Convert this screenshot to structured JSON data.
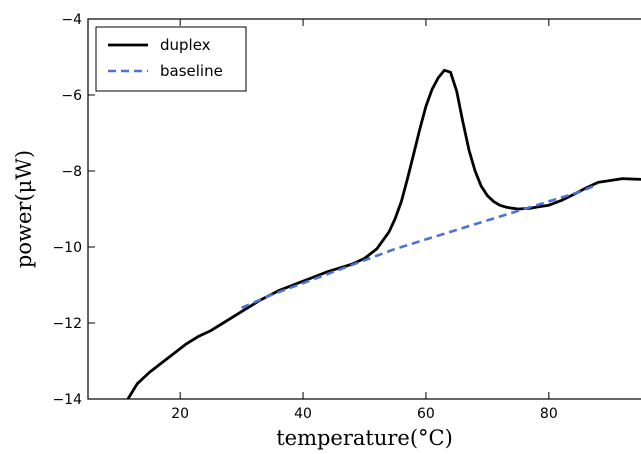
{
  "chart_data": {
    "type": "line",
    "title": "",
    "xlabel": "temperature(°C)",
    "ylabel": "power(μW)",
    "xlim": [
      5,
      95
    ],
    "ylim": [
      -14,
      -4
    ],
    "xticks": [
      20,
      40,
      60,
      80
    ],
    "yticks": [
      -14,
      -12,
      -10,
      -8,
      -6,
      -4
    ],
    "xtick_labels": [
      "20",
      "40",
      "60",
      "80"
    ],
    "ytick_labels": [
      "−14",
      "−12",
      "−10",
      "−8",
      "−6",
      "−4"
    ],
    "grid": false,
    "legend": {
      "placement": "top-left",
      "entries": [
        "duplex",
        "baseline"
      ]
    },
    "series": [
      {
        "name": "duplex",
        "color": "#000000",
        "style": "solid",
        "x": [
          11.5,
          13,
          15,
          17,
          19,
          21,
          23,
          25,
          27,
          30,
          33,
          36,
          40,
          44,
          48,
          50,
          52,
          54,
          55,
          56,
          57,
          58,
          59,
          60,
          61,
          62,
          63,
          64,
          65,
          66,
          67,
          68,
          69,
          70,
          71,
          72,
          73,
          74,
          75,
          76,
          77,
          78,
          80,
          82,
          84,
          86,
          88,
          90,
          92,
          95
        ],
        "y": [
          -14.0,
          -13.6,
          -13.3,
          -13.05,
          -12.8,
          -12.55,
          -12.35,
          -12.2,
          -12.0,
          -11.7,
          -11.4,
          -11.15,
          -10.9,
          -10.65,
          -10.45,
          -10.3,
          -10.05,
          -9.6,
          -9.25,
          -8.8,
          -8.2,
          -7.55,
          -6.9,
          -6.3,
          -5.85,
          -5.55,
          -5.35,
          -5.4,
          -5.9,
          -6.7,
          -7.45,
          -8.0,
          -8.4,
          -8.65,
          -8.8,
          -8.9,
          -8.95,
          -8.98,
          -9.0,
          -8.99,
          -8.98,
          -8.95,
          -8.9,
          -8.78,
          -8.62,
          -8.45,
          -8.3,
          -8.25,
          -8.2,
          -8.22
        ]
      },
      {
        "name": "baseline",
        "color": "#4c72d4",
        "style": "dashed",
        "x": [
          30,
          35,
          40,
          45,
          50,
          55,
          60,
          65,
          70,
          75,
          80,
          85,
          88
        ],
        "y": [
          -11.6,
          -11.25,
          -10.95,
          -10.65,
          -10.35,
          -10.05,
          -9.8,
          -9.55,
          -9.3,
          -9.05,
          -8.8,
          -8.55,
          -8.35
        ]
      }
    ]
  }
}
